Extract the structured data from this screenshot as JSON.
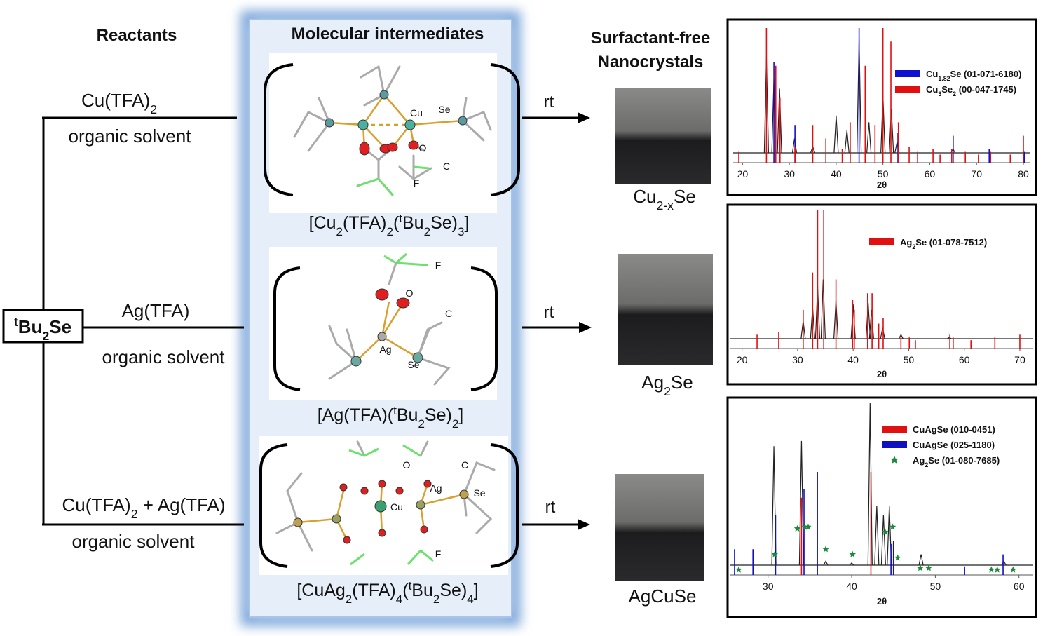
{
  "reactants": {
    "title": "Reactants",
    "source": [
      {
        "sup": "t"
      },
      "Bu",
      {
        "sub": "2"
      },
      "Se"
    ],
    "routes": [
      {
        "reagent": [
          "Cu(TFA)",
          {
            "sub": "2"
          }
        ],
        "solvent": "organic solvent"
      },
      {
        "reagent": [
          "Ag(TFA)"
        ],
        "solvent": "organic solvent"
      },
      {
        "reagent": [
          "Cu(TFA)",
          {
            "sub": "2"
          },
          " + Ag(TFA)"
        ],
        "solvent": "organic solvent"
      }
    ]
  },
  "intermediates": {
    "title": "Molecular intermediates",
    "items": [
      {
        "formula": [
          "[Cu",
          {
            "sub": "2"
          },
          "(TFA)",
          {
            "sub": "2"
          },
          "(",
          {
            "sup": "t"
          },
          "Bu",
          {
            "sub": "2"
          },
          "Se)",
          {
            "sub": "3"
          },
          "]"
        ],
        "atoms": [
          "Cu",
          "Se",
          "O",
          "C",
          "F"
        ]
      },
      {
        "formula": [
          "[Ag(TFA)(",
          {
            "sup": "t"
          },
          "Bu",
          {
            "sub": "2"
          },
          "Se)",
          {
            "sub": "2"
          },
          "]"
        ],
        "atoms": [
          "F",
          "O",
          "C",
          "Ag",
          "Se"
        ]
      },
      {
        "formula": [
          "[CuAg",
          {
            "sub": "2"
          },
          "(TFA)",
          {
            "sub": "4"
          },
          "(",
          {
            "sup": "t"
          },
          "Bu",
          {
            "sub": "2"
          },
          "Se)",
          {
            "sub": "4"
          },
          "]"
        ],
        "atoms": [
          "C",
          "O",
          "Ag",
          "Cu",
          "Se",
          "F"
        ]
      }
    ]
  },
  "arrows": [
    "rt",
    "rt",
    "rt"
  ],
  "products": {
    "title": [
      "Surfactant-free",
      "Nanocrystals"
    ],
    "items": [
      [
        "Cu",
        {
          "sub": "2-x"
        },
        "Se"
      ],
      [
        "Ag",
        {
          "sub": "2"
        },
        "Se"
      ],
      [
        "AgCuSe"
      ]
    ]
  },
  "xrd": [
    {
      "xlim": [
        18,
        81.5
      ],
      "ylim": [
        0,
        100
      ],
      "xticks": [
        20,
        30,
        40,
        50,
        60,
        70,
        80
      ],
      "xlabel": "2θ",
      "series": [
        {
          "name": [
            "Cu",
            {
              "sub": "1.82"
            },
            "Se (01-071-6180)"
          ],
          "color": "#1010d0",
          "kind": "stick",
          "peaks": [
            [
              26.7,
              75
            ],
            [
              31.2,
              28
            ],
            [
              44.9,
              100
            ],
            [
              53.2,
              22
            ],
            [
              65.0,
              20
            ],
            [
              72.7,
              10
            ],
            [
              80.2,
              8
            ]
          ]
        },
        {
          "name": [
            "Cu",
            {
              "sub": "3"
            },
            "Se",
            {
              "sub": "2"
            },
            " (00-047-1745)"
          ],
          "color": "#e01010",
          "kind": "stick",
          "peaks": [
            [
              19.2,
              8
            ],
            [
              25.1,
              100
            ],
            [
              27.1,
              72
            ],
            [
              28.0,
              48
            ],
            [
              31.2,
              12
            ],
            [
              35.0,
              28
            ],
            [
              37.8,
              18
            ],
            [
              41.3,
              10
            ],
            [
              43.0,
              30
            ],
            [
              46.2,
              72
            ],
            [
              48.3,
              28
            ],
            [
              50.0,
              100
            ],
            [
              51.7,
              90
            ],
            [
              53.3,
              30
            ],
            [
              55.6,
              12
            ],
            [
              57.4,
              8
            ],
            [
              60.7,
              10
            ],
            [
              62.2,
              6
            ],
            [
              64.7,
              10
            ],
            [
              67.6,
              8
            ],
            [
              70.4,
              6
            ],
            [
              73.0,
              8
            ],
            [
              77.2,
              6
            ],
            [
              80.0,
              20
            ]
          ]
        }
      ],
      "measured": [
        [
          25.1,
          78
        ],
        [
          26.7,
          62
        ],
        [
          27.9,
          55
        ],
        [
          31.1,
          18
        ],
        [
          35.0,
          12
        ],
        [
          40.0,
          35
        ],
        [
          42.3,
          24
        ],
        [
          44.9,
          92
        ],
        [
          47.0,
          30
        ],
        [
          50.0,
          50
        ],
        [
          51.8,
          40
        ],
        [
          53.0,
          15
        ],
        [
          65.0,
          10
        ]
      ]
    },
    {
      "xlim": [
        17.9,
        72.4
      ],
      "ylim": [
        0,
        100
      ],
      "xticks": [
        20,
        30,
        40,
        50,
        60,
        70
      ],
      "xlabel": "2θ",
      "series": [
        {
          "name": [
            "Ag",
            {
              "sub": "2"
            },
            "Se (01-078-7512)"
          ],
          "color": "#e01010",
          "kind": "stick",
          "peaks": [
            [
              22.7,
              10
            ],
            [
              26.6,
              12
            ],
            [
              31.0,
              28
            ],
            [
              32.7,
              55
            ],
            [
              33.6,
              100
            ],
            [
              34.7,
              100
            ],
            [
              36.9,
              50
            ],
            [
              39.9,
              35
            ],
            [
              40.2,
              28
            ],
            [
              42.6,
              40
            ],
            [
              43.4,
              40
            ],
            [
              44.6,
              18
            ],
            [
              45.4,
              22
            ],
            [
              48.6,
              10
            ],
            [
              50.1,
              8
            ],
            [
              51.2,
              6
            ],
            [
              57.4,
              10
            ],
            [
              58.0,
              8
            ],
            [
              61.2,
              6
            ],
            [
              65.5,
              8
            ],
            [
              70.0,
              10
            ]
          ]
        }
      ],
      "measured": [
        [
          31.0,
          20
        ],
        [
          32.7,
          30
        ],
        [
          33.6,
          45
        ],
        [
          34.6,
          50
        ],
        [
          36.9,
          35
        ],
        [
          40.0,
          32
        ],
        [
          42.7,
          33
        ],
        [
          43.3,
          28
        ],
        [
          45.3,
          15
        ],
        [
          48.6,
          10
        ],
        [
          57.3,
          8
        ]
      ]
    },
    {
      "xlim": [
        25.5,
        61.7
      ],
      "ylim": [
        0,
        100
      ],
      "xticks": [
        30,
        40,
        50,
        60
      ],
      "xlabel": "2θ",
      "series": [
        {
          "name": [
            "CuAgSe (010-0451)"
          ],
          "color": "#e01010",
          "kind": "stick",
          "peaks": [
            [
              34.0,
              45
            ],
            [
              42.3,
              60
            ]
          ]
        },
        {
          "name": [
            "CuAgSe (025-1180)"
          ],
          "color": "#1010c0",
          "kind": "stick",
          "peaks": [
            [
              26.0,
              15
            ],
            [
              28.2,
              15
            ],
            [
              30.9,
              35
            ],
            [
              34.3,
              50
            ],
            [
              35.9,
              60
            ],
            [
              44.7,
              18
            ],
            [
              45.0,
              20
            ],
            [
              53.5,
              5
            ],
            [
              58.1,
              12
            ]
          ]
        },
        {
          "name": [
            "Ag",
            {
              "sub": "2"
            },
            "Se (01-080-7685)"
          ],
          "color": "#1a8a3a",
          "kind": "star",
          "peaks": [
            [
              26.5,
              3
            ],
            [
              30.8,
              12
            ],
            [
              33.5,
              27
            ],
            [
              34.4,
              28
            ],
            [
              34.8,
              28
            ],
            [
              36.9,
              15
            ],
            [
              40.1,
              12
            ],
            [
              44.0,
              25
            ],
            [
              44.9,
              28
            ],
            [
              45.5,
              10
            ],
            [
              48.2,
              4
            ],
            [
              49.2,
              4
            ],
            [
              56.7,
              3
            ],
            [
              57.4,
              3
            ],
            [
              59.3,
              3
            ]
          ]
        }
      ],
      "measured": [
        [
          30.7,
          75
        ],
        [
          34.0,
          78
        ],
        [
          36.9,
          8
        ],
        [
          40.0,
          7
        ],
        [
          42.2,
          100
        ],
        [
          43.0,
          40
        ],
        [
          43.8,
          35
        ],
        [
          44.5,
          40
        ],
        [
          48.3,
          12
        ],
        [
          58.2,
          8
        ]
      ]
    }
  ]
}
